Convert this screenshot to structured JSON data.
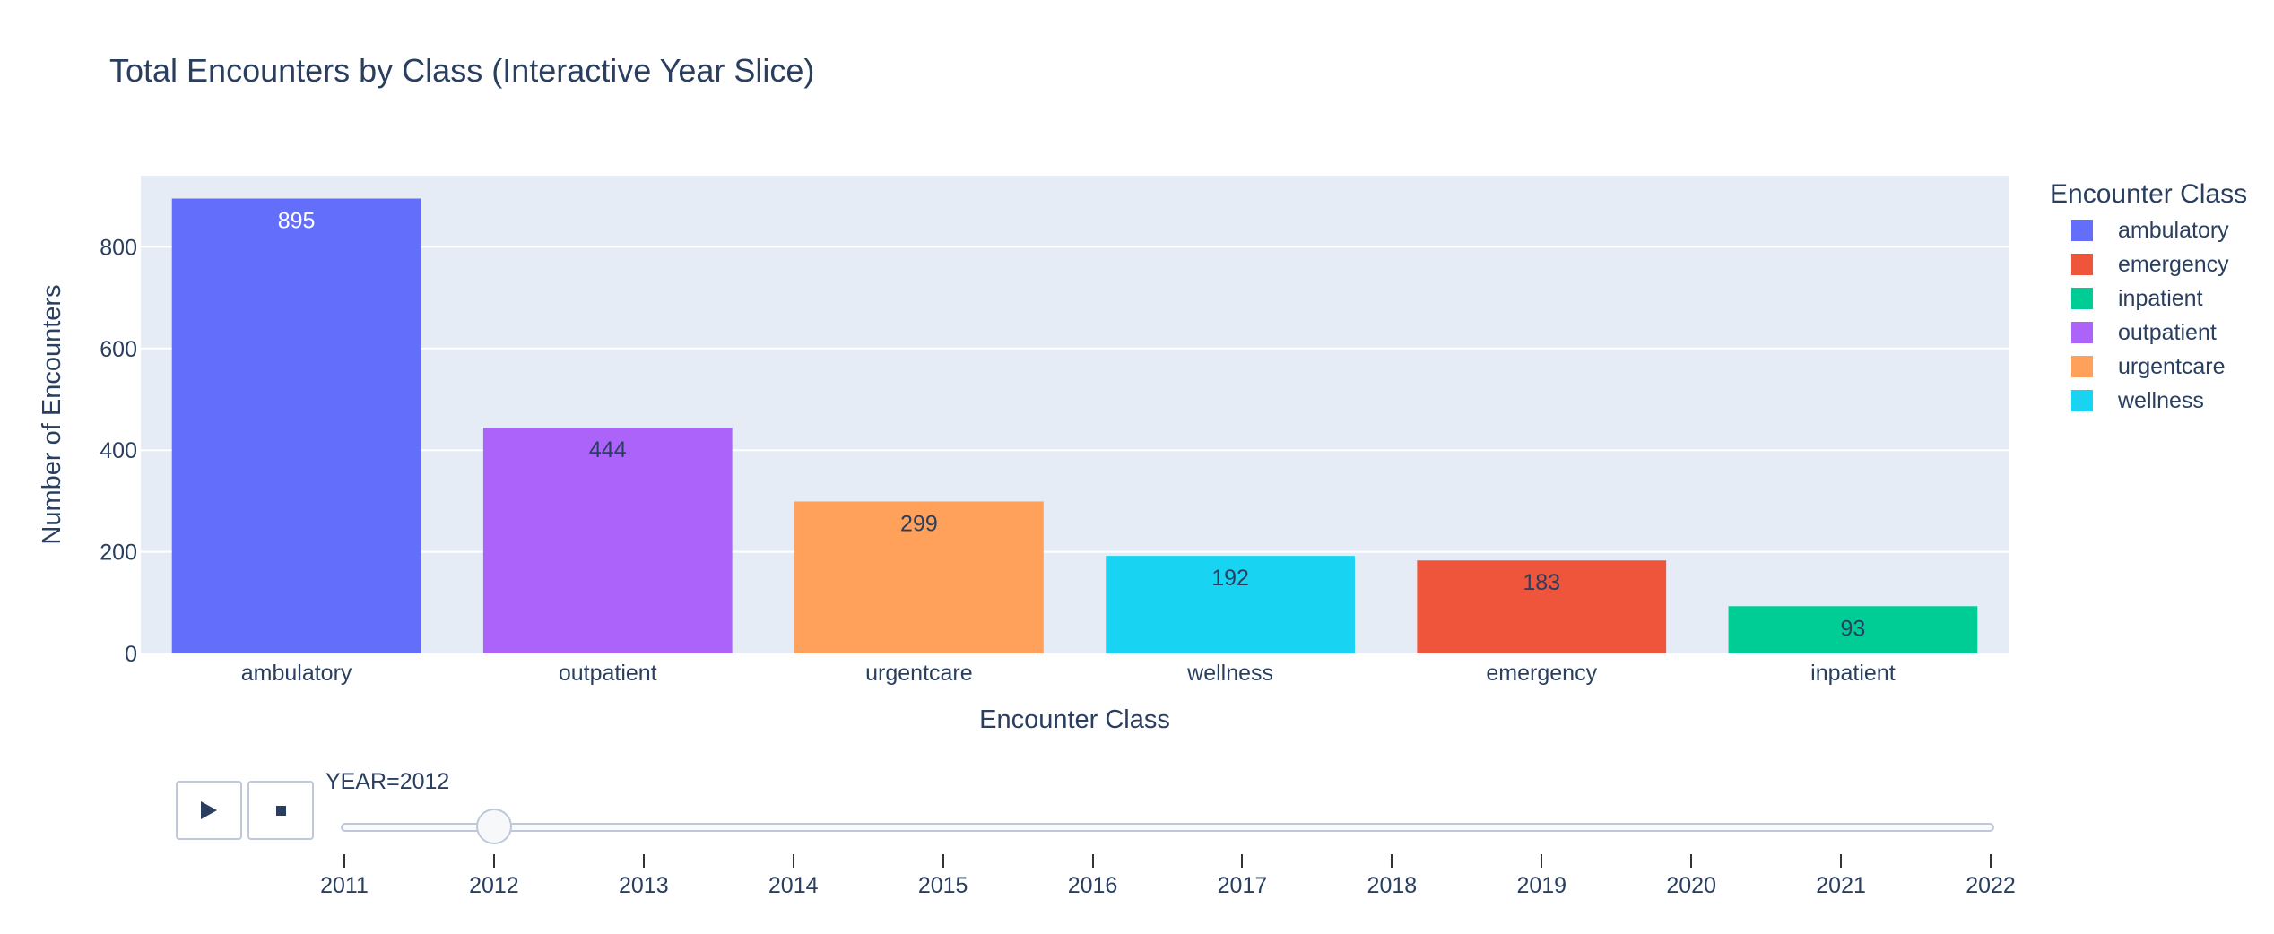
{
  "chart_data": {
    "type": "bar",
    "title": "Total Encounters by Class (Interactive Year Slice)",
    "xlabel": "Encounter Class",
    "ylabel": "Number of Encounters",
    "ylim": [
      0,
      940
    ],
    "yticks": [
      0,
      200,
      400,
      600,
      800
    ],
    "grid": true,
    "categories": [
      "ambulatory",
      "outpatient",
      "urgentcare",
      "wellness",
      "emergency",
      "inpatient"
    ],
    "values": [
      895,
      444,
      299,
      192,
      183,
      93
    ],
    "bar_colors": [
      "#636efa",
      "#ab63fa",
      "#ffa15a",
      "#19d3f3",
      "#ef553b",
      "#00cc96"
    ],
    "label_colors": [
      "#ffffff",
      "#2a3f5f",
      "#2a3f5f",
      "#2a3f5f",
      "#2a3f5f",
      "#2a3f5f"
    ],
    "legend": {
      "title": "Encounter Class",
      "placement": "right",
      "items": [
        {
          "name": "ambulatory",
          "color": "#636efa"
        },
        {
          "name": "emergency",
          "color": "#ef553b"
        },
        {
          "name": "inpatient",
          "color": "#00cc96"
        },
        {
          "name": "outpatient",
          "color": "#ab63fa"
        },
        {
          "name": "urgentcare",
          "color": "#ffa15a"
        },
        {
          "name": "wellness",
          "color": "#19d3f3"
        }
      ]
    },
    "plot_bg": "#e5ecf6"
  },
  "slider": {
    "current_prefix": "YEAR=",
    "current_value": "2012",
    "steps": [
      "2011",
      "2012",
      "2013",
      "2014",
      "2015",
      "2016",
      "2017",
      "2018",
      "2019",
      "2020",
      "2021",
      "2022"
    ],
    "active_index": 1
  },
  "controls": {
    "play_icon": "play-icon",
    "stop_icon": "stop-icon"
  }
}
